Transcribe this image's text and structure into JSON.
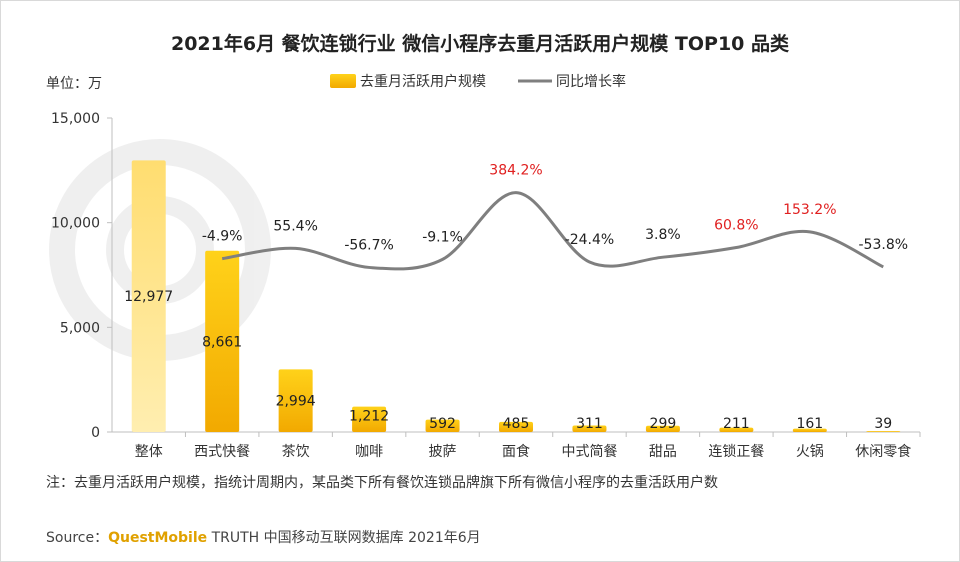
{
  "chart_data": {
    "type": "bar",
    "title": "2021年6月 餐饮连锁行业 微信小程序去重月活跃用户规模 TOP10 品类",
    "unit_label": "单位：万",
    "categories": [
      "整体",
      "西式快餐",
      "茶饮",
      "咖啡",
      "披萨",
      "面食",
      "中式简餐",
      "甜品",
      "连锁正餐",
      "火锅",
      "休闲零食"
    ],
    "series": [
      {
        "name": "去重月活跃用户规模",
        "kind": "bar",
        "values": [
          12977,
          8661,
          2994,
          1212,
          592,
          485,
          311,
          299,
          211,
          161,
          39
        ],
        "labels": [
          "12,977",
          "8,661",
          "2,994",
          "1,212",
          "592",
          "485",
          "311",
          "299",
          "211",
          "161",
          "39"
        ],
        "color": "#f5b800",
        "highlight_color": "#ffe48a"
      },
      {
        "name": "同比增长率",
        "kind": "line",
        "values": [
          null,
          -4.9,
          55.4,
          -56.7,
          -9.1,
          384.2,
          -24.4,
          3.8,
          60.8,
          153.2,
          -53.8
        ],
        "labels": [
          "",
          "-4.9%",
          "55.4%",
          "-56.7%",
          "-9.1%",
          "384.2%",
          "-24.4%",
          "3.8%",
          "60.8%",
          "153.2%",
          "-53.8%"
        ],
        "highlight": [
          false,
          false,
          false,
          false,
          false,
          true,
          false,
          false,
          true,
          true,
          false
        ],
        "color": "#7f7f7f",
        "highlight_text_color": "#e02020"
      }
    ],
    "y_axis": {
      "range": [
        0,
        15000
      ],
      "ticks": [
        0,
        5000,
        10000,
        15000
      ],
      "tick_labels": [
        "0",
        "5,000",
        "10,000",
        "15,000"
      ]
    },
    "legend_position": "top-center",
    "grid": false
  },
  "footer": {
    "note": "注：去重月活跃用户规模，指统计周期内，某品类下所有餐饮连锁品牌旗下所有微信小程序的去重活跃用户数",
    "source_prefix": "Source：",
    "source_brand": "QuestMobile",
    "source_rest": " TRUTH 中国移动互联网数据库 2021年6月"
  }
}
